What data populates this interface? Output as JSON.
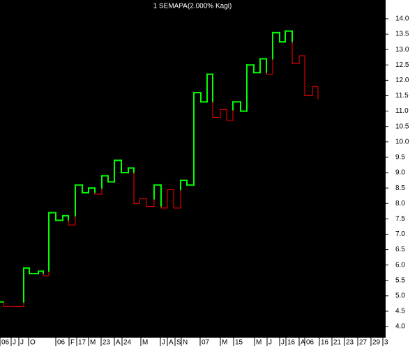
{
  "chart_data": {
    "type": "kagi",
    "title": "1 SEMAPA(2.000% Kagi)",
    "colors": {
      "yang": "#00ff00",
      "yin": "#ff0000"
    },
    "x": [
      0,
      5,
      5,
      20,
      34,
      34,
      42,
      42,
      55,
      55,
      62,
      62,
      70,
      70,
      80,
      80,
      90,
      90,
      98,
      98,
      108,
      108,
      118,
      118,
      127,
      127,
      136,
      136,
      146,
      146,
      155,
      155,
      164,
      164,
      174,
      174,
      184,
      184,
      192,
      192,
      200,
      200,
      210,
      210,
      221,
      221,
      231,
      231,
      240,
      240,
      249,
      249,
      259,
      259,
      268,
      268,
      278,
      278,
      288,
      288,
      297,
      297,
      305,
      305,
      316,
      316,
      325,
      325,
      334,
      334,
      345,
      345,
      354,
      354,
      364,
      364,
      373,
      373,
      382,
      382,
      391,
      391,
      401,
      401,
      409,
      409,
      419,
      419,
      429,
      429,
      437,
      437,
      448,
      448,
      456,
      456
    ],
    "values": [
      4.8,
      4.8,
      4.65,
      4.65,
      4.65,
      5.9,
      5.9,
      5.72,
      5.72,
      5.8,
      5.8,
      5.65,
      5.65,
      7.7,
      7.7,
      7.45,
      7.45,
      7.6,
      7.6,
      7.3,
      7.3,
      8.6,
      8.6,
      8.35,
      8.35,
      8.5,
      8.5,
      8.3,
      8.3,
      8.9,
      8.9,
      8.7,
      8.7,
      9.4,
      9.4,
      9.0,
      9.0,
      9.15,
      9.15,
      8.0,
      8.0,
      8.15,
      8.15,
      7.9,
      7.9,
      8.6,
      8.6,
      7.85,
      7.85,
      8.45,
      8.45,
      7.85,
      7.85,
      8.75,
      8.75,
      8.6,
      8.6,
      11.6,
      11.6,
      11.3,
      11.3,
      12.2,
      12.2,
      10.8,
      10.8,
      11.05,
      11.05,
      10.7,
      10.7,
      11.3,
      11.3,
      11.0,
      11.0,
      12.5,
      12.5,
      12.25,
      12.25,
      12.7,
      12.7,
      12.2,
      12.2,
      13.55,
      13.55,
      13.25,
      13.25,
      13.6,
      13.6,
      12.55,
      12.55,
      12.8,
      12.8,
      11.5,
      11.5,
      11.8,
      11.8,
      11.4
    ],
    "xlim": [
      0,
      553
    ],
    "ylim": [
      3.64,
      14.61
    ],
    "yticks": [
      {
        "value": 4.0,
        "label": "4.0"
      },
      4.5,
      {
        "value": 5.0,
        "label": "5.0"
      },
      5.5,
      {
        "value": 6.0,
        "label": "6.0"
      },
      6.5,
      {
        "value": 7.0,
        "label": "7.0"
      },
      7.5,
      {
        "value": 8.0,
        "label": "8.0"
      },
      8.5,
      {
        "value": 9.0,
        "label": "9.0"
      },
      9.5,
      {
        "value": 10.0,
        "label": "10.0"
      },
      10.5,
      {
        "value": 11.0,
        "label": "11.0"
      },
      11.5,
      {
        "value": 12.0,
        "label": "12.0"
      },
      12.5,
      {
        "value": 13.0,
        "label": "13.0"
      },
      13.5,
      {
        "value": 14.0,
        "label": "14.0"
      }
    ],
    "xticks": [
      {
        "value": 0,
        "label": "06"
      },
      {
        "value": 16,
        "label": "J"
      },
      {
        "value": 27,
        "label": "J"
      },
      {
        "value": 41,
        "label": "O"
      },
      {
        "value": 80,
        "label": "06"
      },
      {
        "value": 99,
        "label": "F"
      },
      {
        "value": 110,
        "label": "17"
      },
      {
        "value": 127,
        "label": "M"
      },
      {
        "value": 145,
        "label": "23"
      },
      {
        "value": 164,
        "label": "A"
      },
      {
        "value": 175,
        "label": "24"
      },
      {
        "value": 202,
        "label": "M"
      },
      {
        "value": 230,
        "label": "J"
      },
      {
        "value": 240,
        "label": "A"
      },
      {
        "value": 251,
        "label": "S"
      },
      {
        "value": 260,
        "label": "N"
      },
      {
        "value": 287,
        "label": "07"
      },
      {
        "value": 316,
        "label": "M"
      },
      {
        "value": 335,
        "label": "15"
      },
      {
        "value": 365,
        "label": "M"
      },
      {
        "value": 383,
        "label": "J"
      },
      {
        "value": 401,
        "label": "J"
      },
      {
        "value": 410,
        "label": "16"
      },
      {
        "value": 429,
        "label": "A"
      },
      {
        "value": 437,
        "label": "06"
      },
      {
        "value": 458,
        "label": "16"
      },
      {
        "value": 476,
        "label": "21"
      },
      {
        "value": 494,
        "label": "23"
      },
      {
        "value": 513,
        "label": "27"
      },
      {
        "value": 532,
        "label": "29"
      },
      {
        "value": 549,
        "label": "3"
      }
    ]
  }
}
